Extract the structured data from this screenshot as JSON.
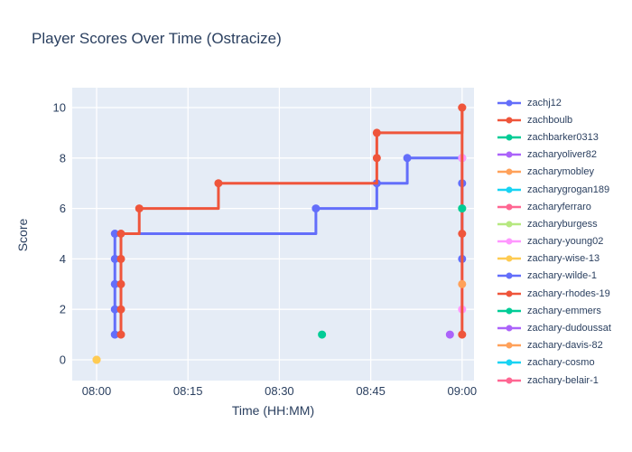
{
  "title": "Player Scores Over Time (Ostracize)",
  "colors": {
    "paper_bg": "#ffffff",
    "plot_bg": "#E5ECF6",
    "grid": "#ffffff",
    "font": "#2a3f5f"
  },
  "chart_data": {
    "type": "line",
    "line_shape": "hv",
    "title": "Player Scores Over Time (Ostracize)",
    "xlabel": "Time (HH:MM)",
    "ylabel": "Score",
    "x_ticks": [
      "08:00",
      "08:15",
      "08:30",
      "08:45",
      "09:00"
    ],
    "y_ticks": [
      0,
      2,
      4,
      6,
      8,
      10
    ],
    "x_range": [
      "07:56",
      "09:02"
    ],
    "ylim": [
      -0.8,
      10.8
    ],
    "grid": true,
    "legend_position": "right",
    "series": [
      {
        "name": "zachj12",
        "color": "#636EFA",
        "points": [
          [
            "08:03",
            1
          ],
          [
            "08:03",
            2
          ],
          [
            "08:03",
            3
          ],
          [
            "08:03",
            4
          ],
          [
            "08:03",
            5
          ],
          [
            "08:36",
            6
          ],
          [
            "08:46",
            7
          ],
          [
            "08:51",
            8
          ],
          [
            "09:00",
            8
          ]
        ]
      },
      {
        "name": "zachboulb",
        "color": "#EF553B",
        "points": [
          [
            "08:04",
            1
          ],
          [
            "08:04",
            2
          ],
          [
            "08:04",
            3
          ],
          [
            "08:04",
            4
          ],
          [
            "08:04",
            5
          ],
          [
            "08:07",
            6
          ],
          [
            "08:20",
            7
          ],
          [
            "08:46",
            8
          ],
          [
            "08:46",
            9
          ],
          [
            "09:00",
            10
          ]
        ]
      },
      {
        "name": "zachbarker0313",
        "color": "#00CC96",
        "points": [
          [
            "08:37",
            1
          ]
        ]
      },
      {
        "name": "zacharyoliver82",
        "color": "#AB63FA",
        "points": [
          [
            "08:58",
            1
          ]
        ]
      },
      {
        "name": "zacharymobley",
        "color": "#FFA15A",
        "points": [
          [
            "08:00",
            0
          ]
        ]
      },
      {
        "name": "zacharygrogan189",
        "color": "#19D3F3",
        "points": []
      },
      {
        "name": "zacharyferraro",
        "color": "#FF6692",
        "points": []
      },
      {
        "name": "zacharyburgess",
        "color": "#B6E880",
        "points": [
          [
            "09:00",
            6
          ]
        ]
      },
      {
        "name": "zachary-young02",
        "color": "#FF97FF",
        "points": [
          [
            "09:00",
            2
          ],
          [
            "09:00",
            8
          ]
        ]
      },
      {
        "name": "zachary-wise-13",
        "color": "#FECB52",
        "points": [
          [
            "08:00",
            0
          ]
        ]
      },
      {
        "name": "zachary-wilde-1",
        "color": "#636EFA",
        "points": [
          [
            "09:00",
            4
          ],
          [
            "09:00",
            7
          ]
        ]
      },
      {
        "name": "zachary-rhodes-19",
        "color": "#EF553B",
        "points": [
          [
            "09:00",
            1
          ],
          [
            "09:00",
            5
          ],
          [
            "09:00",
            10
          ]
        ]
      },
      {
        "name": "zachary-emmers",
        "color": "#00CC96",
        "points": [
          [
            "09:00",
            6
          ]
        ]
      },
      {
        "name": "zachary-dudoussat",
        "color": "#AB63FA",
        "points": []
      },
      {
        "name": "zachary-davis-82",
        "color": "#FFA15A",
        "points": [
          [
            "09:00",
            3
          ]
        ]
      },
      {
        "name": "zachary-cosmo",
        "color": "#19D3F3",
        "points": []
      },
      {
        "name": "zachary-belair-1",
        "color": "#FF6692",
        "points": []
      }
    ]
  }
}
